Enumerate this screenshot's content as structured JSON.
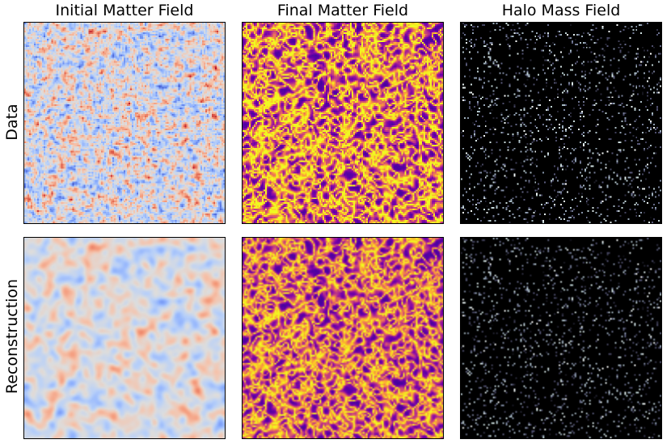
{
  "columns": [
    {
      "title": "Initial Matter Field",
      "colormap": "coolwarm"
    },
    {
      "title": "Final Matter Field",
      "colormap": "plasma"
    },
    {
      "title": "Halo Mass Field",
      "colormap": "bone"
    }
  ],
  "rows": [
    {
      "label": "Data",
      "smooth": false
    },
    {
      "label": "Reconstruction",
      "smooth": true
    }
  ]
}
